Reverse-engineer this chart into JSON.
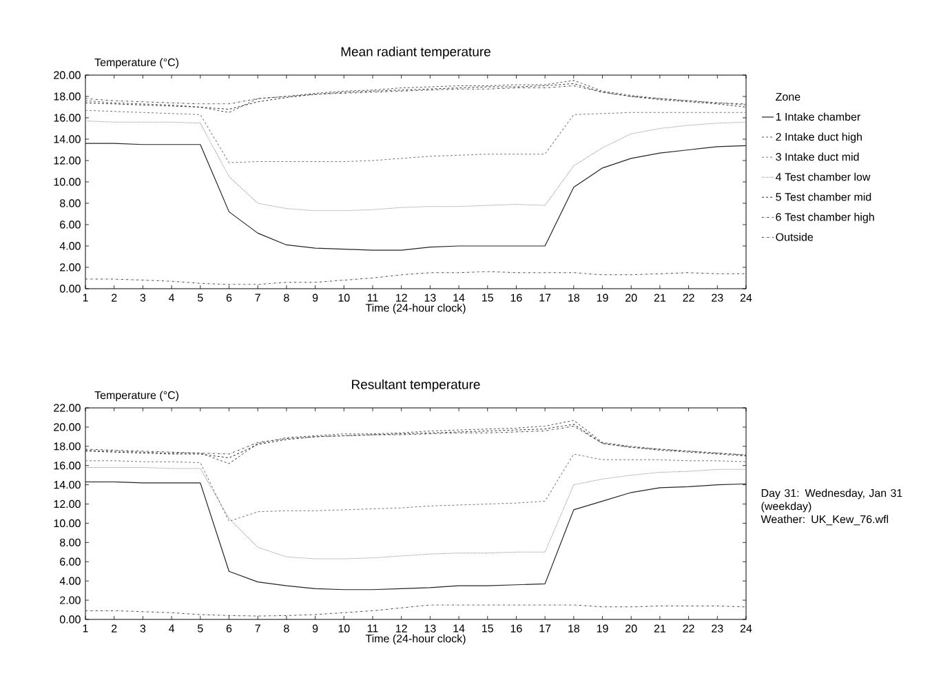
{
  "chart_data": [
    {
      "type": "line",
      "title": "Mean radiant temperature",
      "xlabel": "Time (24-hour clock)",
      "ylabel": "Temperature (°C)",
      "legend": "right",
      "legend_title": "Zone",
      "grid": false,
      "marker": "none",
      "x": [
        1,
        2,
        3,
        4,
        5,
        6,
        7,
        8,
        9,
        10,
        11,
        12,
        13,
        14,
        15,
        16,
        17,
        18,
        19,
        20,
        21,
        22,
        23,
        24
      ],
      "xlim": [
        1,
        24
      ],
      "ylim": [
        0,
        20
      ],
      "xticks": [
        1,
        2,
        3,
        4,
        5,
        6,
        7,
        8,
        9,
        10,
        11,
        12,
        13,
        14,
        15,
        16,
        17,
        18,
        19,
        20,
        21,
        22,
        23,
        24
      ],
      "yticks": [
        {
          "value": 0,
          "label": "0.00"
        },
        {
          "value": 2,
          "label": "2.00"
        },
        {
          "value": 4,
          "label": "4.00"
        },
        {
          "value": 6,
          "label": "6.00"
        },
        {
          "value": 8,
          "label": "8.00"
        },
        {
          "value": 10,
          "label": "10.00"
        },
        {
          "value": 12,
          "label": "12.00"
        },
        {
          "value": 14,
          "label": "14.00"
        },
        {
          "value": 16,
          "label": "16.00"
        },
        {
          "value": 18,
          "label": "18.00"
        },
        {
          "value": 20,
          "label": "20.00"
        }
      ],
      "series": [
        {
          "name": "1  Intake chamber",
          "color": "#222222",
          "line_style": "solid",
          "values": [
            13.6,
            13.6,
            13.5,
            13.5,
            13.5,
            7.2,
            5.2,
            4.1,
            3.8,
            3.7,
            3.6,
            3.6,
            3.9,
            4.0,
            4.0,
            4.0,
            4.0,
            9.5,
            11.3,
            12.2,
            12.7,
            13.0,
            13.3,
            13.4
          ]
        },
        {
          "name": "2  Intake duct high",
          "color": "#555555",
          "line_style": "dashed",
          "values": [
            17.6,
            17.4,
            17.3,
            17.2,
            17.0,
            16.5,
            17.8,
            18.0,
            18.3,
            18.5,
            18.6,
            18.8,
            18.9,
            19.0,
            19.0,
            19.1,
            19.1,
            19.5,
            18.5,
            18.1,
            17.8,
            17.6,
            17.4,
            17.2
          ]
        },
        {
          "name": "3  Intake duct mid",
          "color": "#777777",
          "line_style": "dashed",
          "values": [
            16.7,
            16.6,
            16.5,
            16.4,
            16.3,
            11.8,
            11.9,
            11.9,
            11.9,
            11.9,
            12.0,
            12.2,
            12.4,
            12.5,
            12.6,
            12.6,
            12.6,
            16.3,
            16.4,
            16.5,
            16.5,
            16.5,
            16.5,
            16.5
          ]
        },
        {
          "name": "4  Test chamber low",
          "color": "#888888",
          "line_style": "dotted",
          "values": [
            15.7,
            15.6,
            15.6,
            15.6,
            15.5,
            10.5,
            8.0,
            7.5,
            7.3,
            7.3,
            7.4,
            7.6,
            7.7,
            7.7,
            7.8,
            7.9,
            7.8,
            11.5,
            13.2,
            14.5,
            15.0,
            15.3,
            15.5,
            15.6
          ]
        },
        {
          "name": "5  Test chamber mid",
          "color": "#333333",
          "line_style": "dashed",
          "values": [
            17.4,
            17.3,
            17.2,
            17.1,
            17.0,
            16.8,
            17.5,
            17.9,
            18.2,
            18.4,
            18.5,
            18.6,
            18.7,
            18.8,
            18.9,
            18.9,
            19.0,
            19.2,
            18.4,
            18.0,
            17.7,
            17.5,
            17.3,
            17.0
          ]
        },
        {
          "name": "6  Test chamber high",
          "color": "#444444",
          "line_style": "dashdot",
          "values": [
            17.8,
            17.6,
            17.5,
            17.4,
            17.3,
            17.3,
            17.8,
            18.0,
            18.2,
            18.3,
            18.4,
            18.5,
            18.6,
            18.7,
            18.7,
            18.8,
            18.8,
            19.0,
            18.4,
            18.0,
            17.8,
            17.6,
            17.4,
            17.3
          ]
        },
        {
          "name": "Outside",
          "color": "#444444",
          "line_style": "dashdot",
          "values": [
            0.9,
            0.9,
            0.8,
            0.7,
            0.5,
            0.4,
            0.4,
            0.6,
            0.6,
            0.8,
            1.0,
            1.3,
            1.5,
            1.5,
            1.6,
            1.5,
            1.5,
            1.5,
            1.3,
            1.3,
            1.4,
            1.5,
            1.4,
            1.4
          ]
        }
      ]
    },
    {
      "type": "line",
      "title": "Resultant temperature",
      "xlabel": "Time (24-hour clock)",
      "ylabel": "Temperature (°C)",
      "grid": false,
      "marker": "none",
      "annotations": [
        "Day 31: Wednesday, Jan 31 (weekday)",
        "Weather: UK_Kew_76.wfl"
      ],
      "x": [
        1,
        2,
        3,
        4,
        5,
        6,
        7,
        8,
        9,
        10,
        11,
        12,
        13,
        14,
        15,
        16,
        17,
        18,
        19,
        20,
        21,
        22,
        23,
        24
      ],
      "xlim": [
        1,
        24
      ],
      "ylim": [
        0,
        22
      ],
      "xticks": [
        1,
        2,
        3,
        4,
        5,
        6,
        7,
        8,
        9,
        10,
        11,
        12,
        13,
        14,
        15,
        16,
        17,
        18,
        19,
        20,
        21,
        22,
        23,
        24
      ],
      "yticks": [
        {
          "value": 0,
          "label": "0.00"
        },
        {
          "value": 2,
          "label": "2.00"
        },
        {
          "value": 4,
          "label": "4.00"
        },
        {
          "value": 6,
          "label": "6.00"
        },
        {
          "value": 8,
          "label": "8.00"
        },
        {
          "value": 10,
          "label": "10.00"
        },
        {
          "value": 12,
          "label": "12.00"
        },
        {
          "value": 14,
          "label": "14.00"
        },
        {
          "value": 16,
          "label": "16.00"
        },
        {
          "value": 18,
          "label": "18.00"
        },
        {
          "value": 20,
          "label": "20.00"
        },
        {
          "value": 22,
          "label": "22.00"
        }
      ],
      "series": [
        {
          "color": "#222222",
          "line_style": "solid",
          "values": [
            14.3,
            14.3,
            14.2,
            14.2,
            14.2,
            5.0,
            3.9,
            3.5,
            3.2,
            3.1,
            3.1,
            3.2,
            3.3,
            3.5,
            3.5,
            3.6,
            3.7,
            11.4,
            12.3,
            13.2,
            13.7,
            13.8,
            14.0,
            14.1
          ]
        },
        {
          "color": "#555555",
          "line_style": "dashed",
          "values": [
            17.6,
            17.5,
            17.4,
            17.3,
            17.3,
            16.2,
            18.3,
            18.9,
            19.1,
            19.3,
            19.3,
            19.4,
            19.6,
            19.7,
            19.8,
            19.9,
            20.1,
            20.7,
            18.4,
            18.0,
            17.7,
            17.5,
            17.3,
            17.1
          ]
        },
        {
          "color": "#777777",
          "line_style": "dashed",
          "values": [
            16.5,
            16.5,
            16.4,
            16.4,
            16.3,
            10.2,
            11.2,
            11.3,
            11.3,
            11.4,
            11.5,
            11.6,
            11.8,
            11.9,
            12.0,
            12.1,
            12.3,
            17.2,
            16.6,
            16.6,
            16.6,
            16.5,
            16.5,
            16.4
          ]
        },
        {
          "color": "#888888",
          "line_style": "dotted",
          "values": [
            15.8,
            15.8,
            15.8,
            15.7,
            15.7,
            10.5,
            7.5,
            6.5,
            6.3,
            6.3,
            6.4,
            6.6,
            6.8,
            6.9,
            6.9,
            7.0,
            7.0,
            14.0,
            14.6,
            15.0,
            15.3,
            15.4,
            15.6,
            15.6
          ]
        },
        {
          "color": "#333333",
          "line_style": "dashed",
          "values": [
            17.5,
            17.4,
            17.3,
            17.2,
            17.2,
            16.8,
            18.2,
            18.7,
            19.0,
            19.1,
            19.2,
            19.3,
            19.4,
            19.5,
            19.6,
            19.7,
            19.8,
            20.3,
            18.3,
            17.9,
            17.6,
            17.4,
            17.2,
            17.0
          ]
        },
        {
          "color": "#444444",
          "line_style": "dashdot",
          "values": [
            17.7,
            17.6,
            17.5,
            17.4,
            17.3,
            17.2,
            18.4,
            18.8,
            19.0,
            19.1,
            19.2,
            19.2,
            19.3,
            19.4,
            19.4,
            19.5,
            19.6,
            20.1,
            18.3,
            17.9,
            17.7,
            17.5,
            17.3,
            17.1
          ]
        },
        {
          "color": "#444444",
          "line_style": "dashdot",
          "values": [
            0.9,
            0.9,
            0.8,
            0.7,
            0.5,
            0.4,
            0.35,
            0.4,
            0.5,
            0.7,
            0.9,
            1.2,
            1.5,
            1.5,
            1.5,
            1.5,
            1.5,
            1.5,
            1.3,
            1.3,
            1.4,
            1.4,
            1.4,
            1.3
          ]
        }
      ]
    }
  ]
}
